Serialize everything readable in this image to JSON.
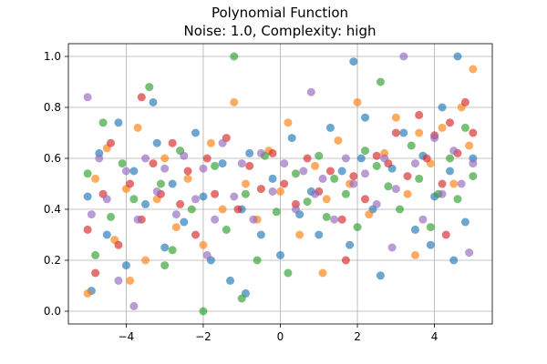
{
  "chart_data": {
    "type": "scatter",
    "title": "Polynomial Function",
    "subtitle": "Noise: 1.0, Complexity: high",
    "xlabel": "",
    "ylabel": "",
    "xlim": [
      -5.5,
      5.5
    ],
    "ylim": [
      -0.05,
      1.05
    ],
    "xticks": [
      -4,
      -2,
      0,
      2,
      4
    ],
    "xtick_labels": [
      "−4",
      "−2",
      "0",
      "2",
      "4"
    ],
    "yticks": [
      0.0,
      0.2,
      0.4,
      0.6,
      0.8,
      1.0
    ],
    "ytick_labels": [
      "0.0",
      "0.2",
      "0.4",
      "0.6",
      "0.8",
      "1.0"
    ],
    "grid": true,
    "marker_alpha": 0.65,
    "series": [
      {
        "color": "#1f77b4",
        "points": [
          [
            -5.0,
            0.45
          ],
          [
            -4.9,
            0.08
          ],
          [
            -4.7,
            0.62
          ],
          [
            -4.5,
            0.3
          ],
          [
            -4.2,
            0.74
          ],
          [
            -4.0,
            0.18
          ],
          [
            -3.8,
            0.55
          ],
          [
            -3.5,
            0.42
          ],
          [
            -3.2,
            0.66
          ],
          [
            -3.0,
            0.25
          ],
          [
            -2.8,
            0.5
          ],
          [
            -2.5,
            0.35
          ],
          [
            -2.2,
            0.7
          ],
          [
            -2.0,
            0.45
          ],
          [
            -1.8,
            0.2
          ],
          [
            -1.5,
            0.58
          ],
          [
            -1.3,
            0.12
          ],
          [
            -1.0,
            0.4
          ],
          [
            -0.8,
            0.62
          ],
          [
            -0.5,
            0.3
          ],
          [
            -0.2,
            0.52
          ],
          [
            0.0,
            0.22
          ],
          [
            0.3,
            0.68
          ],
          [
            0.5,
            0.38
          ],
          [
            0.8,
            0.47
          ],
          [
            1.0,
            0.3
          ],
          [
            1.3,
            0.72
          ],
          [
            1.6,
            0.55
          ],
          [
            1.8,
            0.26
          ],
          [
            2.1,
            0.6
          ],
          [
            2.4,
            0.4
          ],
          [
            2.6,
            0.14
          ],
          [
            2.9,
            0.56
          ],
          [
            3.2,
            0.7
          ],
          [
            3.5,
            0.32
          ],
          [
            3.7,
            0.61
          ],
          [
            4.0,
            0.45
          ],
          [
            4.2,
            0.8
          ],
          [
            4.4,
            0.55
          ],
          [
            4.6,
            1.0
          ],
          [
            4.8,
            0.35
          ],
          [
            5.0,
            0.6
          ],
          [
            -3.3,
            0.82
          ],
          [
            1.9,
            0.98
          ],
          [
            4.5,
            0.2
          ],
          [
            -0.9,
            0.07
          ],
          [
            2.2,
            0.76
          ],
          [
            3.9,
            0.26
          ]
        ]
      },
      {
        "color": "#ff7f0e",
        "points": [
          [
            -5.0,
            0.07
          ],
          [
            -4.8,
            0.52
          ],
          [
            -4.5,
            0.64
          ],
          [
            -4.3,
            0.28
          ],
          [
            -4.0,
            0.48
          ],
          [
            -3.7,
            0.72
          ],
          [
            -3.5,
            0.2
          ],
          [
            -3.2,
            0.44
          ],
          [
            -3.0,
            0.6
          ],
          [
            -2.7,
            0.33
          ],
          [
            -2.4,
            0.52
          ],
          [
            -2.0,
            0.26
          ],
          [
            -1.8,
            0.66
          ],
          [
            -1.5,
            0.4
          ],
          [
            -1.2,
            0.82
          ],
          [
            -0.9,
            0.5
          ],
          [
            -0.6,
            0.36
          ],
          [
            -0.3,
            0.63
          ],
          [
            0.0,
            0.47
          ],
          [
            0.2,
            0.74
          ],
          [
            0.5,
            0.3
          ],
          [
            0.9,
            0.57
          ],
          [
            1.2,
            0.44
          ],
          [
            1.5,
            0.67
          ],
          [
            1.8,
            0.5
          ],
          [
            2.0,
            0.82
          ],
          [
            2.3,
            0.38
          ],
          [
            2.7,
            0.62
          ],
          [
            3.0,
            0.76
          ],
          [
            3.3,
            0.46
          ],
          [
            3.6,
            0.7
          ],
          [
            3.9,
            0.58
          ],
          [
            4.2,
            0.72
          ],
          [
            4.5,
            0.5
          ],
          [
            4.7,
            0.8
          ],
          [
            4.9,
            0.65
          ],
          [
            5.0,
            0.95
          ],
          [
            3.5,
            0.22
          ],
          [
            -3.9,
            0.12
          ],
          [
            1.1,
            0.15
          ]
        ]
      },
      {
        "color": "#2ca02c",
        "points": [
          [
            -5.0,
            0.54
          ],
          [
            -4.8,
            0.22
          ],
          [
            -4.6,
            0.74
          ],
          [
            -4.4,
            0.37
          ],
          [
            -4.1,
            0.58
          ],
          [
            -3.8,
            0.44
          ],
          [
            -3.4,
            0.88
          ],
          [
            -3.1,
            0.5
          ],
          [
            -2.8,
            0.24
          ],
          [
            -2.6,
            0.63
          ],
          [
            -2.3,
            0.4
          ],
          [
            -2.0,
            0.0
          ],
          [
            -1.7,
            0.57
          ],
          [
            -1.4,
            0.32
          ],
          [
            -1.2,
            1.0
          ],
          [
            -0.9,
            0.46
          ],
          [
            -0.6,
            0.2
          ],
          [
            -0.4,
            0.61
          ],
          [
            -0.1,
            0.39
          ],
          [
            0.2,
            0.15
          ],
          [
            0.4,
            0.54
          ],
          [
            0.7,
            0.43
          ],
          [
            1.0,
            0.61
          ],
          [
            1.2,
            0.37
          ],
          [
            1.4,
            0.52
          ],
          [
            1.7,
            0.46
          ],
          [
            2.0,
            0.33
          ],
          [
            2.2,
            0.63
          ],
          [
            2.5,
            0.57
          ],
          [
            2.8,
            0.49
          ],
          [
            3.1,
            0.4
          ],
          [
            3.4,
            0.65
          ],
          [
            3.6,
            0.52
          ],
          [
            3.9,
            0.33
          ],
          [
            4.1,
            0.46
          ],
          [
            4.4,
            0.6
          ],
          [
            4.6,
            0.44
          ],
          [
            4.8,
            0.72
          ],
          [
            5.0,
            0.53
          ],
          [
            -1.0,
            0.05
          ],
          [
            2.6,
            0.9
          ],
          [
            -3.0,
            0.18
          ]
        ]
      },
      {
        "color": "#d62728",
        "points": [
          [
            -5.0,
            0.32
          ],
          [
            -4.8,
            0.15
          ],
          [
            -4.6,
            0.46
          ],
          [
            -4.4,
            0.66
          ],
          [
            -4.2,
            0.26
          ],
          [
            -3.9,
            0.5
          ],
          [
            -3.6,
            0.36
          ],
          [
            -3.3,
            0.58
          ],
          [
            -3.1,
            0.46
          ],
          [
            -2.8,
            0.66
          ],
          [
            -2.6,
            0.42
          ],
          [
            -2.4,
            0.55
          ],
          [
            -2.2,
            0.3
          ],
          [
            -1.9,
            0.6
          ],
          [
            -1.7,
            0.46
          ],
          [
            -1.4,
            0.68
          ],
          [
            -1.1,
            0.4
          ],
          [
            -0.8,
            0.57
          ],
          [
            -0.5,
            0.48
          ],
          [
            -0.2,
            0.62
          ],
          [
            0.1,
            0.5
          ],
          [
            0.4,
            0.42
          ],
          [
            0.7,
            0.6
          ],
          [
            1.0,
            0.47
          ],
          [
            1.3,
            0.55
          ],
          [
            1.6,
            0.36
          ],
          [
            1.9,
            0.53
          ],
          [
            2.2,
            0.44
          ],
          [
            2.5,
            0.61
          ],
          [
            2.8,
            0.58
          ],
          [
            3.0,
            0.7
          ],
          [
            3.3,
            0.53
          ],
          [
            3.6,
            0.77
          ],
          [
            3.8,
            0.6
          ],
          [
            4.0,
            0.69
          ],
          [
            4.2,
            0.5
          ],
          [
            4.4,
            0.74
          ],
          [
            4.6,
            0.62
          ],
          [
            4.8,
            0.82
          ],
          [
            5.0,
            0.7
          ],
          [
            -3.6,
            0.84
          ],
          [
            1.7,
            0.2
          ],
          [
            4.3,
            0.3
          ]
        ]
      },
      {
        "color": "#9467bd",
        "points": [
          [
            -5.0,
            0.84
          ],
          [
            -4.9,
            0.38
          ],
          [
            -4.7,
            0.6
          ],
          [
            -4.5,
            0.44
          ],
          [
            -4.2,
            0.12
          ],
          [
            -4.0,
            0.55
          ],
          [
            -3.7,
            0.36
          ],
          [
            -3.5,
            0.6
          ],
          [
            -3.2,
            0.47
          ],
          [
            -3.0,
            0.56
          ],
          [
            -2.7,
            0.38
          ],
          [
            -2.5,
            0.61
          ],
          [
            -2.2,
            0.44
          ],
          [
            -2.0,
            0.56
          ],
          [
            -1.7,
            0.36
          ],
          [
            -1.5,
            0.66
          ],
          [
            -1.2,
            0.45
          ],
          [
            -1.0,
            0.58
          ],
          [
            -0.7,
            0.36
          ],
          [
            -0.5,
            0.62
          ],
          [
            -0.2,
            0.47
          ],
          [
            0.1,
            0.58
          ],
          [
            0.4,
            0.4
          ],
          [
            0.6,
            0.55
          ],
          [
            0.9,
            0.46
          ],
          [
            1.1,
            0.52
          ],
          [
            1.4,
            0.36
          ],
          [
            1.7,
            0.6
          ],
          [
            1.9,
            0.5
          ],
          [
            2.2,
            0.54
          ],
          [
            2.5,
            0.42
          ],
          [
            2.7,
            0.6
          ],
          [
            3.0,
            0.48
          ],
          [
            3.2,
            1.0
          ],
          [
            3.5,
            0.58
          ],
          [
            3.7,
            0.36
          ],
          [
            4.0,
            0.68
          ],
          [
            4.2,
            0.46
          ],
          [
            4.5,
            0.63
          ],
          [
            4.7,
            0.5
          ],
          [
            5.0,
            0.58
          ],
          [
            -3.8,
            0.02
          ],
          [
            -1.9,
            0.22
          ],
          [
            0.8,
            0.86
          ],
          [
            2.9,
            0.25
          ],
          [
            4.9,
            0.23
          ]
        ]
      }
    ]
  }
}
